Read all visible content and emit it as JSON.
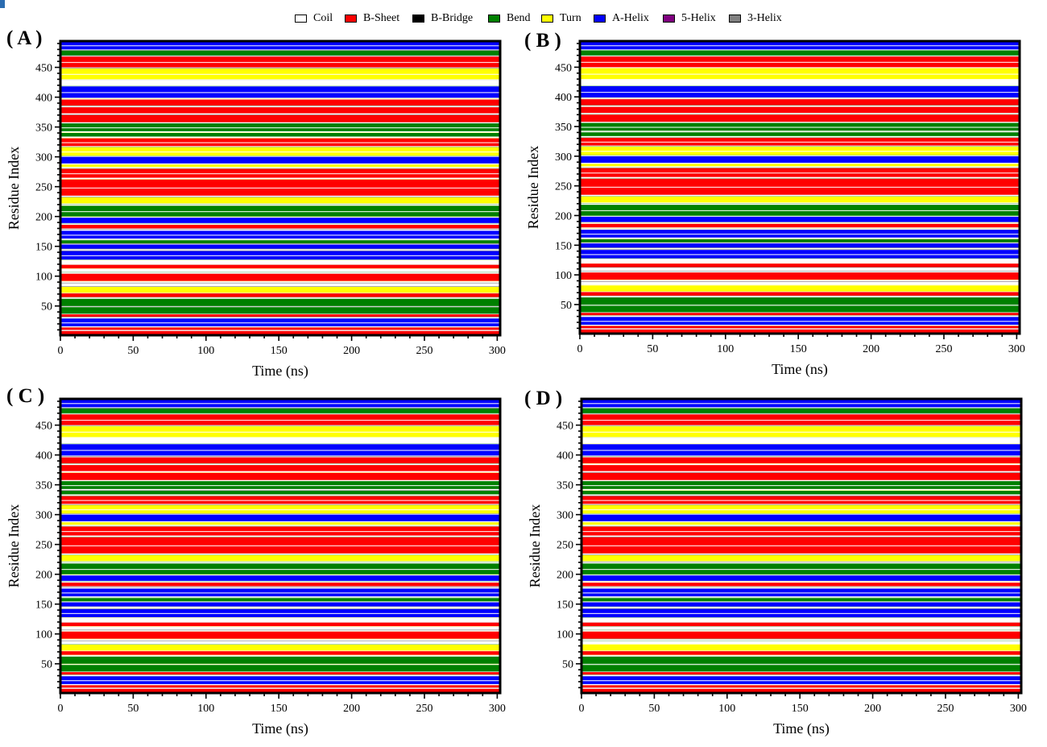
{
  "legend": [
    {
      "label": "Coil",
      "color": "#ffffff"
    },
    {
      "label": "B-Sheet",
      "color": "#ff0000"
    },
    {
      "label": "B-Bridge",
      "color": "#000000"
    },
    {
      "label": "Bend",
      "color": "#008000"
    },
    {
      "label": "Turn",
      "color": "#ffff00"
    },
    {
      "label": "A-Helix",
      "color": "#0000ff"
    },
    {
      "label": "5-Helix",
      "color": "#800080"
    },
    {
      "label": "3-Helix",
      "color": "#808080"
    }
  ],
  "panels": [
    {
      "label": "( A )",
      "xlabel": "Time (ns)",
      "ylabel": "Residue Index"
    },
    {
      "label": "( B )",
      "xlabel": "Time (ns)",
      "ylabel": "Residue Index"
    },
    {
      "label": "( C )",
      "xlabel": "Time (ns)",
      "ylabel": "Residue Index"
    },
    {
      "label": "( D )",
      "xlabel": "Time (ns)",
      "ylabel": "Residue Index"
    }
  ],
  "chart_data": [
    {
      "type": "heatmap",
      "panel": "A",
      "xlabel": "Time (ns)",
      "ylabel": "Residue Index",
      "xlim": [
        0,
        302
      ],
      "ylim": [
        1,
        494
      ],
      "xticks": [
        0,
        50,
        100,
        150,
        200,
        250,
        300
      ],
      "yticks": [
        50,
        100,
        150,
        200,
        250,
        300,
        350,
        400,
        450
      ],
      "bands": [
        {
          "from": 1,
          "to": 8,
          "state": "B-Sheet"
        },
        {
          "from": 10,
          "to": 14,
          "state": "B-Sheet"
        },
        {
          "from": 16,
          "to": 29,
          "state": "A-Helix"
        },
        {
          "from": 32,
          "to": 36,
          "state": "B-Sheet"
        },
        {
          "from": 37,
          "to": 48,
          "state": "Bend"
        },
        {
          "from": 50,
          "to": 62,
          "state": "Bend"
        },
        {
          "from": 65,
          "to": 71,
          "state": "B-Sheet"
        },
        {
          "from": 72,
          "to": 82,
          "state": "Turn"
        },
        {
          "from": 84,
          "to": 88,
          "state": "Coil"
        },
        {
          "from": 92,
          "to": 104,
          "state": "B-Sheet"
        },
        {
          "from": 107,
          "to": 112,
          "state": "Coil"
        },
        {
          "from": 113,
          "to": 119,
          "state": "B-Sheet"
        },
        {
          "from": 121,
          "to": 126,
          "state": "Coil"
        },
        {
          "from": 128,
          "to": 142,
          "state": "A-Helix"
        },
        {
          "from": 146,
          "to": 153,
          "state": "A-Helix"
        },
        {
          "from": 155,
          "to": 160,
          "state": "Bend"
        },
        {
          "from": 163,
          "to": 176,
          "state": "A-Helix"
        },
        {
          "from": 180,
          "to": 186,
          "state": "B-Sheet"
        },
        {
          "from": 189,
          "to": 198,
          "state": "A-Helix"
        },
        {
          "from": 200,
          "to": 218,
          "state": "Bend"
        },
        {
          "from": 222,
          "to": 232,
          "state": "Turn"
        },
        {
          "from": 235,
          "to": 262,
          "state": "B-Sheet"
        },
        {
          "from": 265,
          "to": 280,
          "state": "B-Sheet"
        },
        {
          "from": 283,
          "to": 287,
          "state": "Turn"
        },
        {
          "from": 289,
          "to": 300,
          "state": "A-Helix"
        },
        {
          "from": 302,
          "to": 316,
          "state": "Turn"
        },
        {
          "from": 318,
          "to": 331,
          "state": "B-Sheet"
        },
        {
          "from": 334,
          "to": 340,
          "state": "Bend"
        },
        {
          "from": 343,
          "to": 356,
          "state": "Bend"
        },
        {
          "from": 358,
          "to": 370,
          "state": "B-Sheet"
        },
        {
          "from": 373,
          "to": 383,
          "state": "B-Sheet"
        },
        {
          "from": 386,
          "to": 396,
          "state": "B-Sheet"
        },
        {
          "from": 399,
          "to": 418,
          "state": "A-Helix"
        },
        {
          "from": 421,
          "to": 428,
          "state": "Coil"
        },
        {
          "from": 430,
          "to": 448,
          "state": "Turn"
        },
        {
          "from": 450,
          "to": 468,
          "state": "B-Sheet"
        },
        {
          "from": 470,
          "to": 478,
          "state": "Bend"
        },
        {
          "from": 480,
          "to": 494,
          "state": "A-Helix"
        }
      ]
    },
    {
      "type": "heatmap",
      "panel": "B",
      "xlabel": "Time (ns)",
      "ylabel": "Residue Index",
      "xlim": [
        0,
        302
      ],
      "ylim": [
        1,
        494
      ],
      "xticks": [
        0,
        50,
        100,
        150,
        200,
        250,
        300
      ],
      "yticks": [
        50,
        100,
        150,
        200,
        250,
        300,
        350,
        400,
        450
      ],
      "bands": [
        {
          "from": 1,
          "to": 8,
          "state": "B-Sheet"
        },
        {
          "from": 10,
          "to": 14,
          "state": "B-Sheet"
        },
        {
          "from": 16,
          "to": 29,
          "state": "A-Helix"
        },
        {
          "from": 32,
          "to": 36,
          "state": "B-Sheet"
        },
        {
          "from": 37,
          "to": 48,
          "state": "Bend"
        },
        {
          "from": 50,
          "to": 62,
          "state": "Bend"
        },
        {
          "from": 65,
          "to": 71,
          "state": "B-Sheet"
        },
        {
          "from": 72,
          "to": 82,
          "state": "Turn"
        },
        {
          "from": 84,
          "to": 88,
          "state": "Coil"
        },
        {
          "from": 92,
          "to": 104,
          "state": "B-Sheet"
        },
        {
          "from": 107,
          "to": 112,
          "state": "Coil"
        },
        {
          "from": 113,
          "to": 119,
          "state": "B-Sheet"
        },
        {
          "from": 121,
          "to": 126,
          "state": "Coil"
        },
        {
          "from": 128,
          "to": 142,
          "state": "A-Helix"
        },
        {
          "from": 146,
          "to": 153,
          "state": "A-Helix"
        },
        {
          "from": 155,
          "to": 160,
          "state": "Bend"
        },
        {
          "from": 163,
          "to": 176,
          "state": "A-Helix"
        },
        {
          "from": 180,
          "to": 186,
          "state": "B-Sheet"
        },
        {
          "from": 189,
          "to": 198,
          "state": "A-Helix"
        },
        {
          "from": 200,
          "to": 218,
          "state": "Bend"
        },
        {
          "from": 222,
          "to": 232,
          "state": "Turn"
        },
        {
          "from": 235,
          "to": 262,
          "state": "B-Sheet"
        },
        {
          "from": 265,
          "to": 280,
          "state": "B-Sheet"
        },
        {
          "from": 283,
          "to": 287,
          "state": "Turn"
        },
        {
          "from": 289,
          "to": 300,
          "state": "A-Helix"
        },
        {
          "from": 302,
          "to": 316,
          "state": "Turn"
        },
        {
          "from": 318,
          "to": 331,
          "state": "B-Sheet"
        },
        {
          "from": 334,
          "to": 340,
          "state": "Bend"
        },
        {
          "from": 343,
          "to": 356,
          "state": "Bend"
        },
        {
          "from": 358,
          "to": 370,
          "state": "B-Sheet"
        },
        {
          "from": 373,
          "to": 383,
          "state": "B-Sheet"
        },
        {
          "from": 386,
          "to": 396,
          "state": "B-Sheet"
        },
        {
          "from": 399,
          "to": 418,
          "state": "A-Helix"
        },
        {
          "from": 421,
          "to": 428,
          "state": "Coil"
        },
        {
          "from": 430,
          "to": 448,
          "state": "Turn"
        },
        {
          "from": 450,
          "to": 468,
          "state": "B-Sheet"
        },
        {
          "from": 470,
          "to": 478,
          "state": "Bend"
        },
        {
          "from": 480,
          "to": 494,
          "state": "A-Helix"
        }
      ]
    },
    {
      "type": "heatmap",
      "panel": "C",
      "xlabel": "Time (ns)",
      "ylabel": "Residue Index",
      "xlim": [
        0,
        302
      ],
      "ylim": [
        1,
        494
      ],
      "xticks": [
        0,
        50,
        100,
        150,
        200,
        250,
        300
      ],
      "yticks": [
        50,
        100,
        150,
        200,
        250,
        300,
        350,
        400,
        450
      ],
      "bands": [
        {
          "from": 1,
          "to": 8,
          "state": "B-Sheet"
        },
        {
          "from": 10,
          "to": 14,
          "state": "B-Sheet"
        },
        {
          "from": 16,
          "to": 29,
          "state": "A-Helix"
        },
        {
          "from": 32,
          "to": 36,
          "state": "B-Sheet"
        },
        {
          "from": 37,
          "to": 48,
          "state": "Bend"
        },
        {
          "from": 50,
          "to": 62,
          "state": "Bend"
        },
        {
          "from": 65,
          "to": 71,
          "state": "B-Sheet"
        },
        {
          "from": 72,
          "to": 82,
          "state": "Turn"
        },
        {
          "from": 84,
          "to": 88,
          "state": "Coil"
        },
        {
          "from": 92,
          "to": 104,
          "state": "B-Sheet"
        },
        {
          "from": 107,
          "to": 112,
          "state": "Coil"
        },
        {
          "from": 113,
          "to": 119,
          "state": "B-Sheet"
        },
        {
          "from": 121,
          "to": 126,
          "state": "Coil"
        },
        {
          "from": 128,
          "to": 142,
          "state": "A-Helix"
        },
        {
          "from": 146,
          "to": 153,
          "state": "A-Helix"
        },
        {
          "from": 155,
          "to": 160,
          "state": "Bend"
        },
        {
          "from": 163,
          "to": 176,
          "state": "A-Helix"
        },
        {
          "from": 180,
          "to": 186,
          "state": "B-Sheet"
        },
        {
          "from": 189,
          "to": 198,
          "state": "A-Helix"
        },
        {
          "from": 200,
          "to": 218,
          "state": "Bend"
        },
        {
          "from": 222,
          "to": 232,
          "state": "Turn"
        },
        {
          "from": 235,
          "to": 262,
          "state": "B-Sheet"
        },
        {
          "from": 265,
          "to": 280,
          "state": "B-Sheet"
        },
        {
          "from": 283,
          "to": 287,
          "state": "Turn"
        },
        {
          "from": 289,
          "to": 300,
          "state": "A-Helix"
        },
        {
          "from": 302,
          "to": 316,
          "state": "Turn"
        },
        {
          "from": 318,
          "to": 331,
          "state": "B-Sheet"
        },
        {
          "from": 334,
          "to": 340,
          "state": "Bend"
        },
        {
          "from": 343,
          "to": 356,
          "state": "Bend"
        },
        {
          "from": 358,
          "to": 370,
          "state": "B-Sheet"
        },
        {
          "from": 373,
          "to": 383,
          "state": "B-Sheet"
        },
        {
          "from": 386,
          "to": 396,
          "state": "B-Sheet"
        },
        {
          "from": 399,
          "to": 418,
          "state": "A-Helix"
        },
        {
          "from": 421,
          "to": 428,
          "state": "Coil"
        },
        {
          "from": 430,
          "to": 448,
          "state": "Turn"
        },
        {
          "from": 450,
          "to": 468,
          "state": "B-Sheet"
        },
        {
          "from": 470,
          "to": 478,
          "state": "Bend"
        },
        {
          "from": 480,
          "to": 494,
          "state": "A-Helix"
        }
      ]
    },
    {
      "type": "heatmap",
      "panel": "D",
      "xlabel": "Time (ns)",
      "ylabel": "Residue Index",
      "xlim": [
        0,
        302
      ],
      "ylim": [
        1,
        494
      ],
      "xticks": [
        0,
        50,
        100,
        150,
        200,
        250,
        300
      ],
      "yticks": [
        50,
        100,
        150,
        200,
        250,
        300,
        350,
        400,
        450
      ],
      "bands": [
        {
          "from": 1,
          "to": 8,
          "state": "B-Sheet"
        },
        {
          "from": 10,
          "to": 14,
          "state": "B-Sheet"
        },
        {
          "from": 16,
          "to": 29,
          "state": "A-Helix"
        },
        {
          "from": 32,
          "to": 36,
          "state": "B-Sheet"
        },
        {
          "from": 37,
          "to": 48,
          "state": "Bend"
        },
        {
          "from": 50,
          "to": 62,
          "state": "Bend"
        },
        {
          "from": 65,
          "to": 71,
          "state": "B-Sheet"
        },
        {
          "from": 72,
          "to": 82,
          "state": "Turn"
        },
        {
          "from": 84,
          "to": 88,
          "state": "Coil"
        },
        {
          "from": 92,
          "to": 104,
          "state": "B-Sheet"
        },
        {
          "from": 107,
          "to": 112,
          "state": "Coil"
        },
        {
          "from": 113,
          "to": 119,
          "state": "B-Sheet"
        },
        {
          "from": 121,
          "to": 126,
          "state": "Coil"
        },
        {
          "from": 128,
          "to": 142,
          "state": "A-Helix"
        },
        {
          "from": 146,
          "to": 153,
          "state": "A-Helix"
        },
        {
          "from": 155,
          "to": 160,
          "state": "Bend"
        },
        {
          "from": 163,
          "to": 176,
          "state": "A-Helix"
        },
        {
          "from": 180,
          "to": 186,
          "state": "B-Sheet"
        },
        {
          "from": 189,
          "to": 198,
          "state": "A-Helix"
        },
        {
          "from": 200,
          "to": 218,
          "state": "Bend"
        },
        {
          "from": 222,
          "to": 232,
          "state": "Turn"
        },
        {
          "from": 235,
          "to": 262,
          "state": "B-Sheet"
        },
        {
          "from": 265,
          "to": 280,
          "state": "B-Sheet"
        },
        {
          "from": 283,
          "to": 287,
          "state": "Turn"
        },
        {
          "from": 289,
          "to": 300,
          "state": "A-Helix"
        },
        {
          "from": 302,
          "to": 316,
          "state": "Turn"
        },
        {
          "from": 318,
          "to": 331,
          "state": "B-Sheet"
        },
        {
          "from": 334,
          "to": 340,
          "state": "Bend"
        },
        {
          "from": 343,
          "to": 356,
          "state": "Bend"
        },
        {
          "from": 358,
          "to": 370,
          "state": "B-Sheet"
        },
        {
          "from": 373,
          "to": 383,
          "state": "B-Sheet"
        },
        {
          "from": 386,
          "to": 396,
          "state": "B-Sheet"
        },
        {
          "from": 399,
          "to": 418,
          "state": "A-Helix"
        },
        {
          "from": 421,
          "to": 428,
          "state": "Coil"
        },
        {
          "from": 430,
          "to": 448,
          "state": "Turn"
        },
        {
          "from": 450,
          "to": 468,
          "state": "B-Sheet"
        },
        {
          "from": 470,
          "to": 478,
          "state": "Bend"
        },
        {
          "from": 480,
          "to": 494,
          "state": "A-Helix"
        }
      ]
    }
  ]
}
